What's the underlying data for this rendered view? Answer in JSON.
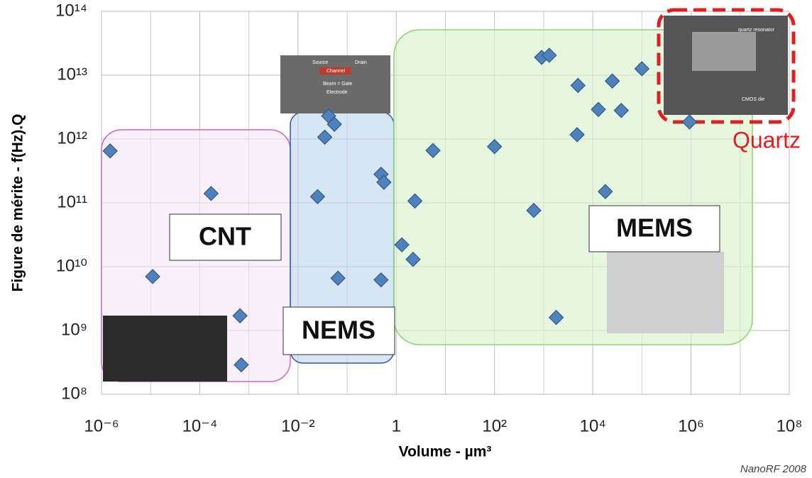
{
  "chart_data": {
    "type": "scatter",
    "xlabel": "Volume  - µm³",
    "ylabel": "Figure de mérite - f(Hz).Q",
    "source": "NanoRF 2008",
    "regions": [
      "CNT",
      "NEMS",
      "MEMS",
      "Quartz"
    ],
    "inset_labels": [
      "Source",
      "Channel",
      "Drain",
      "Beam = Gate",
      "Electrode",
      "quartz resonator",
      "CMOS die"
    ],
    "log_x": true,
    "log_y": true,
    "grid": true,
    "xlim": [
      1e-06,
      100000000.0
    ],
    "ylim": [
      100000000.0,
      100000000000000.0
    ],
    "xticks": [
      {
        "value": 1e-06,
        "label": "10⁻⁶"
      },
      {
        "value": 0.0001,
        "label": "10⁻⁴"
      },
      {
        "value": 0.01,
        "label": "10⁻²"
      },
      1,
      {
        "value": 100,
        "label": "10²"
      },
      {
        "value": 10000.0,
        "label": "10⁴"
      },
      {
        "value": 1000000.0,
        "label": "10⁶"
      },
      {
        "value": 100000000.0,
        "label": "10⁸"
      }
    ],
    "yticks": [
      {
        "value": 100000000.0,
        "label": "10⁸"
      },
      {
        "value": 1000000000.0,
        "label": "10⁹"
      },
      {
        "value": 10000000000.0,
        "label": "10¹⁰"
      },
      {
        "value": 100000000000.0,
        "label": "10¹¹"
      },
      {
        "value": 1000000000000.0,
        "label": "10¹²"
      },
      {
        "value": 10000000000000.0,
        "label": "10¹³"
      },
      {
        "value": 100000000000000.0,
        "label": "10¹⁴"
      }
    ],
    "color": "#4f81bd",
    "x": [
      1.5e-06,
      1.1e-05,
      0.00017,
      0.00066,
      0.0007,
      0.025,
      0.035,
      0.042,
      0.055,
      0.065,
      0.49,
      0.56,
      0.49,
      1.3,
      2.2,
      2.4,
      5.6,
      100,
      630,
      910,
      1300,
      1800,
      4800,
      5000,
      13000,
      18000,
      25000,
      38000,
      100000,
      930000
    ],
    "values": [
      650000000000.0,
      7000000000.0,
      140000000000.0,
      1700000000.0,
      290000000.0,
      125000000000.0,
      1070000000000.0,
      2300000000000.0,
      1700000000000.0,
      6600000000.0,
      280000000000.0,
      210000000000.0,
      6200000000.0,
      22000000000.0,
      13000000000.0,
      107000000000.0,
      660000000000.0,
      760000000000.0,
      76000000000.0,
      19000000000000.0,
      20500000000000.0,
      1600000000.0,
      1170000000000.0,
      6900000000000.0,
      2900000000000.0,
      150000000000.0,
      8100000000000.0,
      2800000000000.0,
      12600000000000.0,
      1850000000000.0
    ]
  }
}
